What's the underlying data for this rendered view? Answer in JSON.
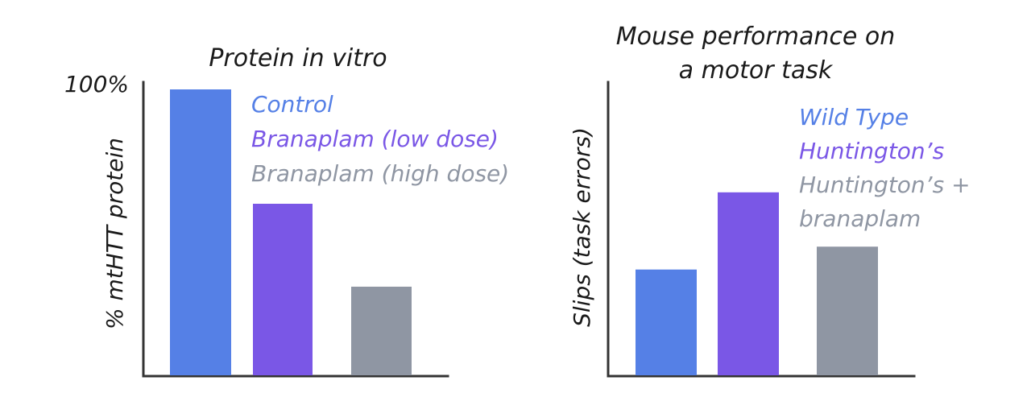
{
  "colors": {
    "blue": "#5580e6",
    "purple": "#7a57e6",
    "gray": "#8f96a3"
  },
  "chart_data": [
    {
      "type": "bar",
      "title": "Protein in vitro",
      "ylabel": "% mtHTT protein",
      "xlabel": "",
      "ytick_top": "100%",
      "ylim": [
        0,
        100
      ],
      "categories": [
        "Control",
        "Branaplam (low dose)",
        "Branaplam (high dose)"
      ],
      "values": [
        100,
        60,
        31
      ],
      "colors": [
        "#5580e6",
        "#7a57e6",
        "#8f96a3"
      ],
      "legend": [
        {
          "text": "Control",
          "color": "#5580e6"
        },
        {
          "text": "Branaplam (low dose)",
          "color": "#7a57e6"
        },
        {
          "text": "Branaplam (high dose)",
          "color": "#8f96a3"
        }
      ],
      "legend_placement": "top-right",
      "grid": false
    },
    {
      "type": "bar",
      "title_lines": [
        "Mouse performance on",
        "a motor task"
      ],
      "ylabel": "Slips (task errors)",
      "xlabel": "",
      "ylim": [
        0,
        100
      ],
      "categories": [
        "Wild Type",
        "Huntington's",
        "Huntington's + branaplam"
      ],
      "values": [
        37,
        64,
        45
      ],
      "colors": [
        "#5580e6",
        "#7a57e6",
        "#8f96a3"
      ],
      "legend": [
        {
          "lines": [
            "Wild Type"
          ],
          "color": "#5580e6"
        },
        {
          "lines": [
            "Huntington’s"
          ],
          "color": "#7a57e6"
        },
        {
          "lines": [
            "Huntington’s +",
            "branaplam"
          ],
          "color": "#8f96a3"
        }
      ],
      "legend_placement": "top-right",
      "grid": false
    }
  ]
}
